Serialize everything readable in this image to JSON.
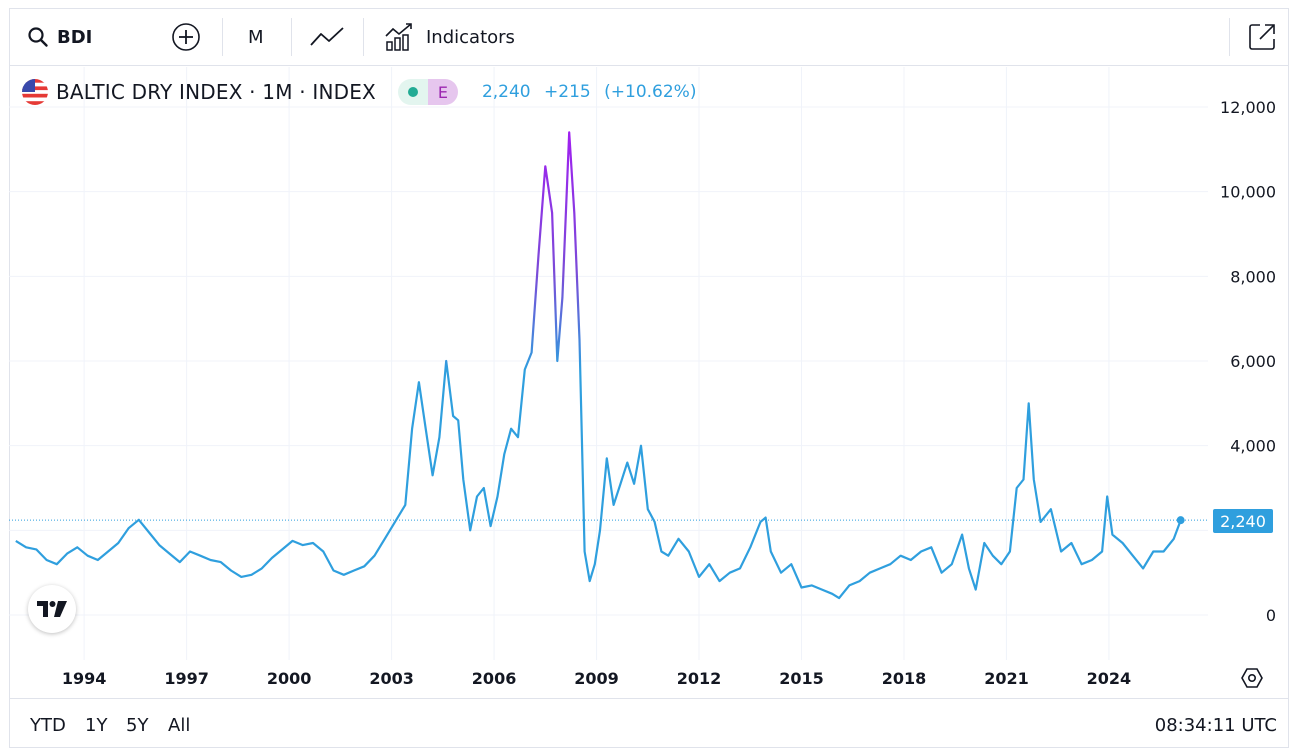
{
  "toolbar": {
    "symbol": "BDI",
    "interval": "M",
    "indicators_label": "Indicators",
    "icons": [
      "search-icon",
      "plus-circle-icon",
      "line-chart-icon",
      "indicators-icon",
      "popout-icon"
    ]
  },
  "legend": {
    "title": "BALTIC DRY INDEX · 1M · INDEX",
    "badge_e": "E",
    "last": "2,240",
    "change": "+215",
    "change_pct": "(+10.62%)"
  },
  "price_label": "2,240",
  "bottom": {
    "ranges": [
      "YTD",
      "1Y",
      "5Y",
      "All"
    ],
    "clock": "08:34:11 UTC"
  },
  "colors": {
    "line": "#2f9fde",
    "line_peak": "#a020f0",
    "grid": "#f0f3fa",
    "text": "#131722"
  },
  "chart_data": {
    "type": "line",
    "title": "BALTIC DRY INDEX · 1M · INDEX",
    "xlabel": "",
    "ylabel": "",
    "ylim": [
      -1000,
      12500
    ],
    "xlim": [
      1991.8,
      2026.9
    ],
    "y_ticks": [
      "12,000",
      "10,000",
      "8,000",
      "6,000",
      "4,000",
      "0"
    ],
    "y_tick_values": [
      12000,
      10000,
      8000,
      6000,
      4000,
      0
    ],
    "x_ticks": [
      "1994",
      "1997",
      "2000",
      "2003",
      "2006",
      "2009",
      "2012",
      "2015",
      "2018",
      "2021",
      "2024"
    ],
    "x_tick_values": [
      1994,
      1997,
      2000,
      2003,
      2006,
      2009,
      2012,
      2015,
      2018,
      2021,
      2024
    ],
    "last_value": 2240,
    "grid": true,
    "series": [
      {
        "x": [
          1992.0,
          1992.3,
          1992.6,
          1992.9,
          1993.2,
          1993.5,
          1993.8,
          1994.1,
          1994.4,
          1994.7,
          1995.0,
          1995.3,
          1995.6,
          1995.9,
          1996.2,
          1996.5,
          1996.8,
          1997.1,
          1997.4,
          1997.7,
          1998.0,
          1998.3,
          1998.6,
          1998.9,
          1999.2,
          1999.5,
          1999.8,
          2000.1,
          2000.4,
          2000.7,
          2001.0,
          2001.3,
          2001.6,
          2001.9,
          2002.2,
          2002.5,
          2002.8,
          2003.1,
          2003.4,
          2003.6,
          2003.8,
          2004.0,
          2004.2,
          2004.4,
          2004.6,
          2004.8,
          2004.95,
          2005.1,
          2005.3,
          2005.5,
          2005.7,
          2005.9,
          2006.1,
          2006.3,
          2006.5,
          2006.7,
          2006.9,
          2007.1,
          2007.3,
          2007.5,
          2007.7,
          2007.85,
          2008.0,
          2008.2,
          2008.35,
          2008.5,
          2008.65,
          2008.8,
          2008.95,
          2009.1,
          2009.3,
          2009.5,
          2009.7,
          2009.9,
          2010.1,
          2010.3,
          2010.5,
          2010.7,
          2010.9,
          2011.1,
          2011.4,
          2011.7,
          2012.0,
          2012.3,
          2012.6,
          2012.9,
          2013.2,
          2013.5,
          2013.8,
          2013.95,
          2014.1,
          2014.4,
          2014.7,
          2015.0,
          2015.3,
          2015.6,
          2015.9,
          2016.1,
          2016.4,
          2016.7,
          2017.0,
          2017.3,
          2017.6,
          2017.9,
          2018.2,
          2018.5,
          2018.8,
          2019.1,
          2019.4,
          2019.7,
          2019.9,
          2020.1,
          2020.35,
          2020.6,
          2020.85,
          2021.1,
          2021.3,
          2021.5,
          2021.65,
          2021.8,
          2022.0,
          2022.3,
          2022.6,
          2022.9,
          2023.2,
          2023.5,
          2023.8,
          2023.95,
          2024.1,
          2024.4,
          2024.7,
          2025.0,
          2025.3,
          2025.6,
          2025.9,
          2026.1
        ],
        "y": [
          1750,
          1600,
          1550,
          1300,
          1200,
          1450,
          1600,
          1400,
          1300,
          1500,
          1700,
          2050,
          2250,
          1950,
          1650,
          1450,
          1250,
          1500,
          1400,
          1300,
          1250,
          1050,
          900,
          950,
          1100,
          1350,
          1550,
          1750,
          1650,
          1700,
          1500,
          1050,
          950,
          1050,
          1150,
          1400,
          1800,
          2200,
          2600,
          4400,
          5500,
          4400,
          3300,
          4200,
          6000,
          4700,
          4600,
          3200,
          2000,
          2800,
          3000,
          2100,
          2800,
          3800,
          4400,
          4200,
          5800,
          6200,
          8500,
          10600,
          9500,
          6000,
          7500,
          11400,
          9500,
          6500,
          1500,
          800,
          1200,
          2000,
          3700,
          2600,
          3100,
          3600,
          3100,
          4000,
          2500,
          2200,
          1500,
          1400,
          1800,
          1500,
          900,
          1200,
          800,
          1000,
          1100,
          1600,
          2200,
          2300,
          1500,
          1000,
          1200,
          650,
          700,
          600,
          500,
          400,
          700,
          800,
          1000,
          1100,
          1200,
          1400,
          1300,
          1500,
          1600,
          1000,
          1200,
          1900,
          1100,
          600,
          1700,
          1400,
          1200,
          1500,
          3000,
          3200,
          5000,
          3200,
          2200,
          2500,
          1500,
          1700,
          1200,
          1300,
          1500,
          2800,
          1900,
          1700,
          1400,
          1100,
          1500,
          1500,
          1800,
          2240
        ]
      }
    ]
  }
}
